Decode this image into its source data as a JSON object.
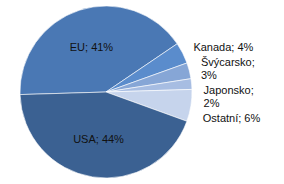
{
  "chart_data": {
    "type": "pie",
    "categories": [
      "EU",
      "Kanada",
      "Švýcarsko",
      "Japonsko",
      "Ostatní",
      "USA"
    ],
    "values": [
      41,
      4,
      3,
      2,
      6,
      44
    ],
    "value_labels": [
      "EU; 41%",
      "Kanada; 4%",
      "Švýcarsko; 3%",
      "Japonsko; 2%",
      "Ostatní; 6%",
      "USA; 44%"
    ],
    "colors": [
      "#4a78b4",
      "#5a8ccc",
      "#86a6d6",
      "#a7bde2",
      "#c6d4ec",
      "#3b6192"
    ],
    "data_labels": true
  }
}
